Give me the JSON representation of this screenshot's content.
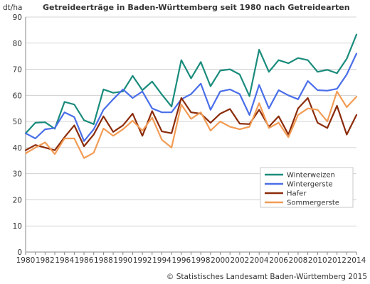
{
  "chart_data": {
    "type": "line",
    "title": "Getreideerträge in Baden-Württemberg seit 1980 nach Getreidearten",
    "ylabel": "dt/ha",
    "xlabel": "",
    "source": "© Statistisches Landesamt Baden-Württemberg 2015",
    "ylim": [
      0,
      90
    ],
    "yticks": [
      0,
      10,
      20,
      30,
      40,
      50,
      60,
      70,
      80,
      90
    ],
    "xlim": [
      1980,
      2014
    ],
    "xticks": [
      1980,
      1982,
      1984,
      1986,
      1988,
      1990,
      1992,
      1994,
      1996,
      1998,
      2000,
      2002,
      2004,
      2006,
      2008,
      2010,
      2012,
      2014
    ],
    "grid": "horizontal",
    "legend_position": "bottom-right",
    "x": [
      1980,
      1981,
      1982,
      1983,
      1984,
      1985,
      1986,
      1987,
      1988,
      1989,
      1990,
      1991,
      1992,
      1993,
      1994,
      1995,
      1996,
      1997,
      1998,
      1999,
      2000,
      2001,
      2002,
      2003,
      2004,
      2005,
      2006,
      2007,
      2008,
      2009,
      2010,
      2011,
      2012,
      2013,
      2014
    ],
    "series": [
      {
        "name": "Winterweizen",
        "color": "#1a8c7c",
        "values": [
          45.5,
          49.5,
          49.7,
          47.2,
          57.5,
          56.5,
          50.5,
          49.0,
          62.3,
          61.0,
          61.5,
          67.5,
          62.0,
          65.3,
          60.3,
          55.7,
          73.5,
          66.5,
          72.8,
          63.5,
          69.5,
          70.0,
          68.0,
          59.7,
          77.5,
          69.0,
          73.5,
          72.3,
          74.3,
          73.5,
          69.0,
          69.8,
          68.5,
          74.0,
          83.3
        ]
      },
      {
        "name": "Wintergerste",
        "color": "#4a6ee8",
        "values": [
          45.5,
          43.5,
          47.0,
          47.5,
          53.5,
          51.7,
          42.5,
          47.0,
          54.5,
          58.5,
          62.3,
          59.0,
          61.5,
          55.0,
          53.5,
          53.5,
          58.5,
          60.5,
          64.5,
          54.5,
          61.5,
          62.3,
          60.5,
          52.5,
          64.0,
          55.0,
          62.0,
          60.0,
          58.5,
          65.5,
          62.0,
          61.8,
          62.5,
          68.0,
          76.0
        ]
      },
      {
        "name": "Hafer",
        "color": "#8b2c0a",
        "values": [
          39.0,
          41.0,
          40.0,
          39.0,
          44.0,
          48.5,
          40.5,
          45.0,
          52.0,
          46.0,
          48.5,
          53.0,
          44.5,
          54.0,
          46.2,
          45.5,
          59.0,
          53.5,
          53.0,
          49.5,
          53.0,
          54.8,
          49.2,
          49.0,
          54.5,
          48.0,
          52.0,
          45.0,
          55.0,
          59.0,
          49.5,
          47.5,
          56.0,
          45.0,
          52.5
        ]
      },
      {
        "name": "Sommergerste",
        "color": "#f29c55",
        "values": [
          37.8,
          40.0,
          42.0,
          37.5,
          43.5,
          43.5,
          36.0,
          38.0,
          47.3,
          44.5,
          47.0,
          50.3,
          46.5,
          51.5,
          43.0,
          40.0,
          56.5,
          51.0,
          53.5,
          46.5,
          50.0,
          48.0,
          47.0,
          48.0,
          57.0,
          47.5,
          49.5,
          44.0,
          52.5,
          55.0,
          54.5,
          50.0,
          61.5,
          55.5,
          59.5
        ]
      }
    ]
  }
}
